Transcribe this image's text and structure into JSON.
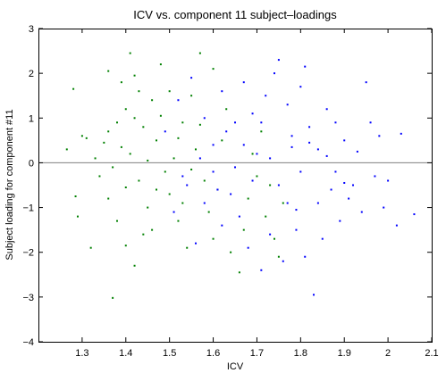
{
  "chart_data": {
    "type": "scatter",
    "title": "ICV vs. component 11 subject–loadings",
    "xlabel": "ICV",
    "ylabel": "Subject loading for component #11",
    "xlim": [
      1.2,
      2.1
    ],
    "ylim": [
      -4,
      3
    ],
    "xticks": [
      "1.3",
      "1.4",
      "1.5",
      "1.6",
      "1.7",
      "1.8",
      "1.9",
      "2",
      "2.1"
    ],
    "yticks": [
      "−4",
      "−3",
      "−2",
      "−1",
      "0",
      "1",
      "2",
      "3"
    ],
    "xtick_values": [
      1.3,
      1.4,
      1.5,
      1.6,
      1.7,
      1.8,
      1.9,
      2.0,
      2.1
    ],
    "ytick_values": [
      -4,
      -3,
      -2,
      -1,
      0,
      1,
      2,
      3
    ],
    "reference_line_y": 0,
    "grid": false,
    "legend": "none",
    "colors": {
      "axis": "#000000",
      "reference_line": "#808080",
      "green": "#008000",
      "blue": "#0000ff"
    },
    "series": [
      {
        "color": "#008000",
        "points": [
          [
            1.265,
            0.3
          ],
          [
            1.28,
            1.65
          ],
          [
            1.3,
            0.6
          ],
          [
            1.31,
            0.55
          ],
          [
            1.285,
            -0.75
          ],
          [
            1.29,
            -1.2
          ],
          [
            1.32,
            -1.9
          ],
          [
            1.37,
            -3.02
          ],
          [
            1.36,
            2.05
          ],
          [
            1.39,
            1.8
          ],
          [
            1.41,
            2.45
          ],
          [
            1.42,
            1.95
          ],
          [
            1.4,
            1.2
          ],
          [
            1.38,
            0.9
          ],
          [
            1.36,
            0.7
          ],
          [
            1.35,
            0.45
          ],
          [
            1.33,
            0.1
          ],
          [
            1.34,
            -0.3
          ],
          [
            1.36,
            -0.8
          ],
          [
            1.38,
            -1.3
          ],
          [
            1.4,
            -1.85
          ],
          [
            1.42,
            -2.3
          ],
          [
            1.44,
            -1.6
          ],
          [
            1.45,
            -1.0
          ],
          [
            1.43,
            -0.4
          ],
          [
            1.41,
            0.2
          ],
          [
            1.44,
            0.8
          ],
          [
            1.46,
            1.4
          ],
          [
            1.48,
            2.2
          ],
          [
            1.5,
            1.6
          ],
          [
            1.47,
            0.5
          ],
          [
            1.49,
            -0.2
          ],
          [
            1.5,
            -0.7
          ],
          [
            1.52,
            -1.3
          ],
          [
            1.54,
            -1.9
          ],
          [
            1.53,
            -0.9
          ],
          [
            1.51,
            0.1
          ],
          [
            1.53,
            0.9
          ],
          [
            1.55,
            1.5
          ],
          [
            1.57,
            2.45
          ],
          [
            1.56,
            0.3
          ],
          [
            1.58,
            -0.4
          ],
          [
            1.59,
            -1.1
          ],
          [
            1.6,
            -1.7
          ],
          [
            1.61,
            -0.6
          ],
          [
            1.62,
            0.5
          ],
          [
            1.63,
            1.2
          ],
          [
            1.6,
            2.1
          ],
          [
            1.64,
            -2.0
          ],
          [
            1.66,
            -2.45
          ],
          [
            1.67,
            -1.5
          ],
          [
            1.68,
            -0.8
          ],
          [
            1.69,
            0.2
          ],
          [
            1.7,
            -0.3
          ],
          [
            1.72,
            -1.2
          ],
          [
            1.73,
            -0.5
          ],
          [
            1.75,
            -2.1
          ],
          [
            1.74,
            -1.7
          ],
          [
            1.76,
            -0.9
          ],
          [
            1.71,
            0.7
          ],
          [
            1.48,
            1.05
          ],
          [
            1.46,
            -1.5
          ],
          [
            1.39,
            0.35
          ],
          [
            1.37,
            -0.1
          ],
          [
            1.43,
            1.6
          ],
          [
            1.45,
            0.05
          ],
          [
            1.47,
            -0.6
          ],
          [
            1.52,
            0.55
          ],
          [
            1.55,
            -0.15
          ],
          [
            1.57,
            0.85
          ],
          [
            1.4,
            -0.55
          ],
          [
            1.42,
            1.0
          ]
        ]
      },
      {
        "color": "#0000ff",
        "points": [
          [
            1.49,
            0.7
          ],
          [
            1.52,
            1.4
          ],
          [
            1.55,
            1.9
          ],
          [
            1.58,
            1.0
          ],
          [
            1.6,
            0.4
          ],
          [
            1.62,
            1.6
          ],
          [
            1.65,
            0.9
          ],
          [
            1.67,
            1.8
          ],
          [
            1.69,
            1.1
          ],
          [
            1.7,
            0.2
          ],
          [
            1.72,
            1.5
          ],
          [
            1.74,
            2.0
          ],
          [
            1.75,
            2.3
          ],
          [
            1.77,
            1.3
          ],
          [
            1.78,
            0.6
          ],
          [
            1.8,
            1.7
          ],
          [
            1.82,
            0.8
          ],
          [
            1.84,
            0.3
          ],
          [
            1.86,
            1.2
          ],
          [
            1.88,
            -0.2
          ],
          [
            1.9,
            0.5
          ],
          [
            1.92,
            -0.5
          ],
          [
            1.95,
            1.8
          ],
          [
            1.96,
            0.9
          ],
          [
            1.98,
            0.6
          ],
          [
            2.0,
            -0.4
          ],
          [
            2.03,
            0.65
          ],
          [
            2.06,
            -1.15
          ],
          [
            2.02,
            -1.4
          ],
          [
            1.99,
            -1.0
          ],
          [
            1.97,
            -0.3
          ],
          [
            1.94,
            -1.1
          ],
          [
            1.91,
            -0.8
          ],
          [
            1.89,
            -1.3
          ],
          [
            1.87,
            -0.6
          ],
          [
            1.85,
            -1.7
          ],
          [
            1.83,
            -2.95
          ],
          [
            1.81,
            -2.1
          ],
          [
            1.79,
            -1.5
          ],
          [
            1.77,
            -0.9
          ],
          [
            1.76,
            -2.2
          ],
          [
            1.73,
            -1.6
          ],
          [
            1.71,
            -2.4
          ],
          [
            1.68,
            -1.9
          ],
          [
            1.66,
            -1.2
          ],
          [
            1.64,
            -0.7
          ],
          [
            1.62,
            -1.4
          ],
          [
            1.6,
            -0.2
          ],
          [
            1.58,
            -0.9
          ],
          [
            1.56,
            -1.8
          ],
          [
            1.54,
            -0.5
          ],
          [
            1.51,
            -1.1
          ],
          [
            1.53,
            -0.3
          ],
          [
            1.57,
            0.1
          ],
          [
            1.61,
            -0.6
          ],
          [
            1.63,
            0.7
          ],
          [
            1.65,
            -0.1
          ],
          [
            1.67,
            0.4
          ],
          [
            1.69,
            -0.4
          ],
          [
            1.71,
            0.9
          ],
          [
            1.73,
            0.1
          ],
          [
            1.75,
            -0.5
          ],
          [
            1.78,
            0.35
          ],
          [
            1.8,
            -0.2
          ],
          [
            1.82,
            0.45
          ],
          [
            1.84,
            -0.9
          ],
          [
            1.86,
            0.15
          ],
          [
            1.88,
            0.9
          ],
          [
            1.9,
            -0.45
          ],
          [
            1.93,
            0.25
          ],
          [
            1.81,
            2.15
          ],
          [
            1.79,
            -1.05
          ]
        ]
      }
    ]
  }
}
